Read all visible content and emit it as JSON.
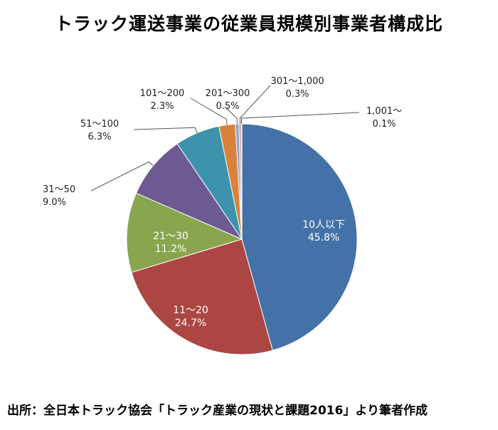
{
  "chart_data": {
    "type": "pie",
    "title": "トラック運送事業の従業員規模別事業者構成比",
    "source": "出所：全日本トラック協会「トラック産業の現状と課題2016」より筆者作成",
    "slices": [
      {
        "label": "10人以下",
        "value": 45.8,
        "value_text": "45.8%",
        "color": "#4472a8"
      },
      {
        "label": "11～20",
        "value": 24.7,
        "value_text": "24.7%",
        "color": "#ab4642"
      },
      {
        "label": "21～30",
        "value": 11.2,
        "value_text": "11.2%",
        "color": "#89a54e"
      },
      {
        "label": "31～50",
        "value": 9.0,
        "value_text": "9.0%",
        "color": "#6d5a92"
      },
      {
        "label": "51～100",
        "value": 6.3,
        "value_text": "6.3%",
        "color": "#3d93ab"
      },
      {
        "label": "101～200",
        "value": 2.3,
        "value_text": "2.3%",
        "color": "#d9823b"
      },
      {
        "label": "201～300",
        "value": 0.5,
        "value_text": "0.5%",
        "color": "#8fa2cc"
      },
      {
        "label": "301～1,000",
        "value": 0.3,
        "value_text": "0.3%",
        "color": "#c98f8c"
      },
      {
        "label": "1,001～",
        "value": 0.1,
        "value_text": "0.1%",
        "color": "#b4c98d"
      }
    ]
  }
}
